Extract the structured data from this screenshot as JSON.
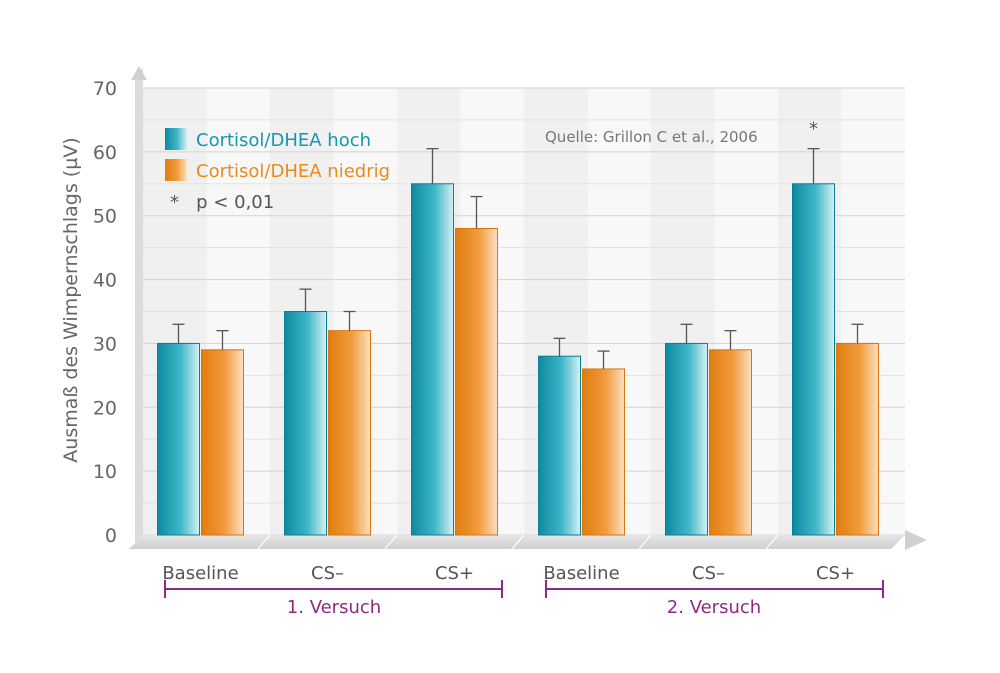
{
  "chart_data": {
    "type": "bar",
    "ylabel": "Ausmaß des Wimpernschlags (µV)",
    "ylim": [
      0,
      70
    ],
    "yticks": [
      "0",
      "10",
      "20",
      "30",
      "40",
      "50",
      "60",
      "70"
    ],
    "yticks_values": [
      0,
      10,
      20,
      30,
      40,
      50,
      60,
      70
    ],
    "categories": [
      "Baseline",
      "CS–",
      "CS+",
      "Baseline",
      "CS–",
      "CS+"
    ],
    "groups": [
      {
        "label": "1. Versuch"
      },
      {
        "label": "2. Versuch"
      }
    ],
    "series": [
      {
        "name": "Cortisol/DHEA hoch",
        "color": "#1597ad",
        "values": [
          30,
          35,
          55,
          28,
          30,
          55
        ],
        "errors": [
          3,
          3.5,
          5.5,
          2.8,
          3,
          5.5
        ]
      },
      {
        "name": "Cortisol/DHEA niedrig",
        "color": "#ea8a1a",
        "values": [
          29,
          32,
          48,
          26,
          29,
          30
        ],
        "errors": [
          3,
          3,
          5,
          2.8,
          3,
          3
        ]
      }
    ],
    "significance_marks": [
      {
        "category_index": 5,
        "symbol": "*"
      }
    ],
    "legend_note": "*   p < 0,01",
    "source": "Quelle: Grillon C et al., 2006",
    "grid": true,
    "legend_position": "top-left"
  }
}
